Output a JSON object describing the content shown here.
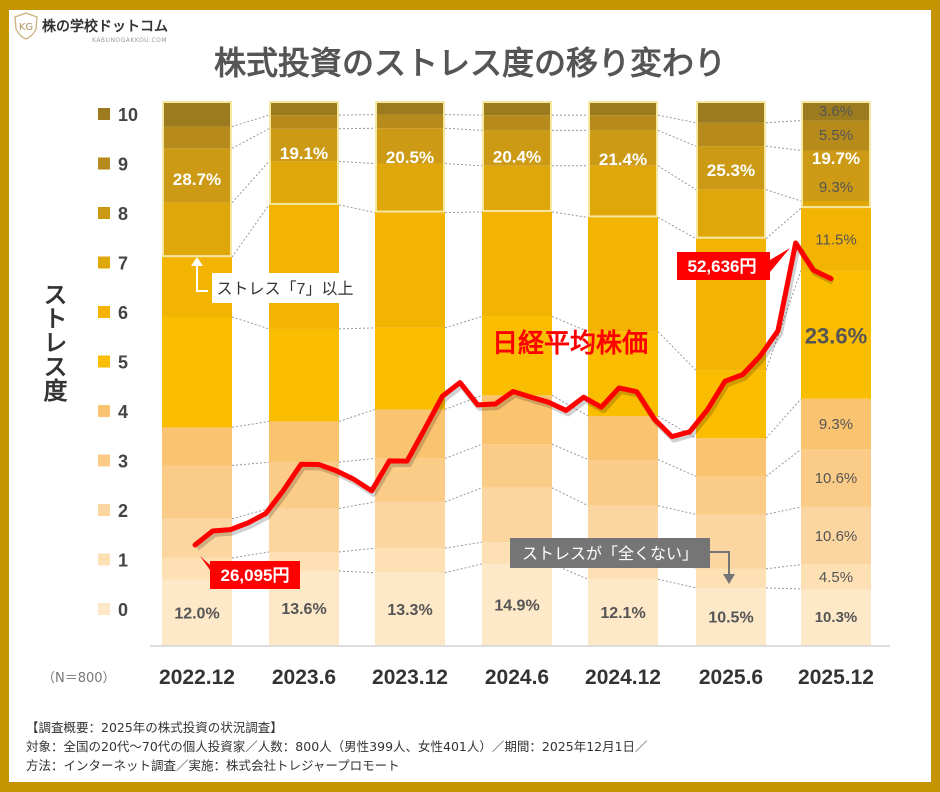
{
  "brand": {
    "name": "株の学校ドットコム",
    "sub": "KABUNOGAKKOU.COM",
    "mark": "KG"
  },
  "header": {
    "title": "株式投資のストレス度の移り変わり"
  },
  "sample_note": "（N＝800）",
  "footer": {
    "lines": [
      "【調査概要：2025年の株式投資の状況調査】",
      "対象：全国の20代～70代の個人投資家／人数：800人（男性399人、女性401人）／期間：2025年12月1日／",
      "方法：インターネット調査／実施：株式会社トレジャープロモート"
    ]
  },
  "colors": {
    "frame": "#c49500",
    "levels": [
      "#fde8c8",
      "#fde0b4",
      "#fcd6a0",
      "#fbcc88",
      "#fac370",
      "#fbbd00",
      "#f2b400",
      "#e0a70a",
      "#cc9a14",
      "#b68b1c",
      "#9c7a1e"
    ],
    "line": "#ff0000",
    "box_outline": "#f6e7a0"
  },
  "chart_data": {
    "type": "bar",
    "stacked": true,
    "title": "株式投資のストレス度の移り変わり",
    "ylabel": "ストレス度",
    "categories": [
      "2022.12",
      "2023.6",
      "2023.12",
      "2024.6",
      "2024.12",
      "2025.6",
      "2025.12"
    ],
    "legend": {
      "placement": "left",
      "entries": [
        "10",
        "9",
        "8",
        "7",
        "6",
        "5",
        "4",
        "3",
        "2",
        "1",
        "0"
      ]
    },
    "levels": [
      0,
      1,
      2,
      3,
      4,
      5,
      6,
      7,
      8,
      9,
      10
    ],
    "values": [
      [
        12.0,
        4.0,
        7.2,
        9.8,
        7.0,
        20.3,
        11.0,
        10.0,
        10.0,
        4.0,
        4.7
      ],
      [
        13.6,
        3.5,
        8.0,
        8.5,
        7.5,
        17.0,
        22.8,
        8.0,
        6.0,
        2.5,
        2.6
      ],
      [
        13.3,
        4.5,
        8.5,
        8.0,
        9.0,
        15.0,
        21.2,
        9.0,
        6.5,
        2.5,
        2.5
      ],
      [
        14.9,
        4.0,
        10.0,
        8.0,
        9.0,
        14.5,
        19.2,
        8.5,
        6.5,
        2.8,
        2.6
      ],
      [
        12.1,
        4.5,
        9.0,
        8.5,
        8.0,
        15.5,
        21.0,
        9.5,
        6.5,
        2.8,
        2.6
      ],
      [
        10.5,
        3.5,
        10.0,
        7.0,
        7.0,
        12.5,
        24.2,
        9.0,
        8.0,
        4.3,
        4.0
      ],
      [
        10.3,
        4.5,
        10.6,
        10.6,
        9.3,
        23.6,
        11.5,
        1.3,
        9.3,
        5.5,
        3.6
      ]
    ],
    "level0_labels": [
      "12.0%",
      "13.6%",
      "13.3%",
      "14.9%",
      "12.1%",
      "10.5%",
      "10.3%"
    ],
    "level7plus_labels": [
      "28.7%",
      "19.1%",
      "20.5%",
      "20.4%",
      "21.4%",
      "25.3%",
      "19.7%"
    ],
    "last_column_labels": [
      "10.3%",
      "4.5%",
      "10.6%",
      "10.6%",
      "9.3%",
      "23.6%",
      "11.5%",
      "",
      "9.3%",
      "5.5%",
      "3.6%"
    ],
    "line_series": {
      "name": "日経平均株価",
      "unit": "円",
      "months": [
        "2022-12",
        "2023-01",
        "2023-02",
        "2023-03",
        "2023-04",
        "2023-05",
        "2023-06",
        "2023-07",
        "2023-08",
        "2023-09",
        "2023-10",
        "2023-11",
        "2023-12",
        "2024-01",
        "2024-02",
        "2024-03",
        "2024-04",
        "2024-05",
        "2024-06",
        "2024-07",
        "2024-08",
        "2024-09",
        "2024-10",
        "2024-11",
        "2024-12",
        "2025-01",
        "2025-02",
        "2025-03",
        "2025-04",
        "2025-05",
        "2025-06",
        "2025-07",
        "2025-08",
        "2025-09",
        "2025-10",
        "2025-11",
        "2025-12"
      ],
      "values": [
        26095,
        27327,
        27446,
        28041,
        28856,
        30888,
        33189,
        33172,
        32619,
        31858,
        30859,
        33487,
        33464,
        36287,
        39166,
        40369,
        38406,
        38488,
        39583,
        39102,
        38648,
        37920,
        39081,
        38208,
        39895,
        39572,
        37156,
        35618,
        36045,
        37965,
        40487,
        41069,
        42718,
        44933,
        52636,
        50254,
        49500
      ]
    },
    "annotations": {
      "start": "26,095円",
      "peak": "52,636円",
      "seven_plus": "ストレス「7」以上",
      "zero": "ストレスが「全くない」"
    },
    "grid": false
  }
}
